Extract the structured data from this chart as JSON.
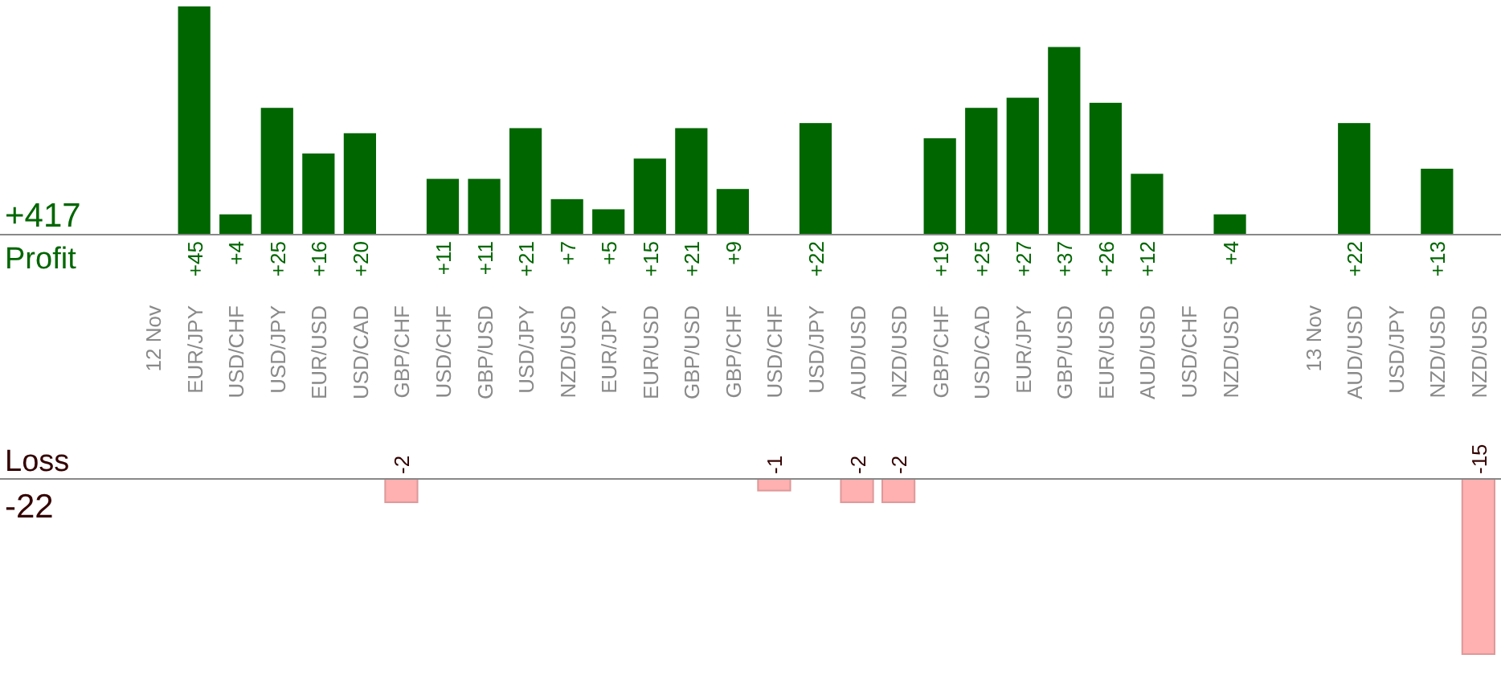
{
  "chart_data": [
    {
      "type": "bar",
      "ylabel": "Profit",
      "annotations": [
        "+417"
      ],
      "categories": [
        "12 Nov",
        "EUR/JPY",
        "USD/CHF",
        "USD/JPY",
        "EUR/USD",
        "USD/CAD",
        "GBP/CHF",
        "USD/CHF",
        "GBP/USD",
        "USD/JPY",
        "NZD/USD",
        "EUR/JPY",
        "EUR/USD",
        "GBP/USD",
        "GBP/CHF",
        "USD/CHF",
        "USD/JPY",
        "AUD/USD",
        "NZD/USD",
        "GBP/CHF",
        "USD/CAD",
        "EUR/JPY",
        "GBP/USD",
        "EUR/USD",
        "AUD/USD",
        "USD/CHF",
        "NZD/USD",
        null,
        "13 Nov",
        "AUD/USD",
        "USD/JPY",
        "NZD/USD",
        "NZD/USD"
      ],
      "values": [
        null,
        45,
        4,
        25,
        16,
        20,
        null,
        11,
        11,
        21,
        7,
        5,
        15,
        21,
        9,
        null,
        22,
        null,
        null,
        19,
        25,
        27,
        37,
        26,
        12,
        null,
        4,
        null,
        null,
        22,
        null,
        13,
        null
      ],
      "value_labels": [
        null,
        "+45",
        "+4",
        "+25",
        "+16",
        "+20",
        null,
        "+11",
        "+11",
        "+21",
        "+7",
        "+5",
        "+15",
        "+21",
        "+9",
        null,
        "+22",
        null,
        null,
        "+19",
        "+25",
        "+27",
        "+37",
        "+26",
        "+12",
        null,
        "+4",
        null,
        null,
        "+22",
        null,
        "+13",
        null
      ],
      "color": "#006600"
    },
    {
      "type": "bar",
      "ylabel": "Loss",
      "annotations": [
        "-22"
      ],
      "categories": [
        null,
        null,
        null,
        null,
        null,
        null,
        null,
        null,
        null,
        null,
        null,
        null,
        null,
        null,
        null,
        null,
        null,
        null,
        null,
        null,
        null,
        null,
        null,
        null,
        null,
        null,
        null,
        null,
        null,
        null,
        null,
        null,
        null
      ],
      "values": [
        null,
        null,
        null,
        null,
        null,
        null,
        -2,
        null,
        null,
        null,
        null,
        null,
        null,
        null,
        null,
        -1,
        null,
        -2,
        -2,
        null,
        null,
        null,
        null,
        null,
        null,
        null,
        null,
        null,
        null,
        null,
        null,
        null,
        -15
      ],
      "data_labels": true,
      "color": "#ffb0b0"
    }
  ]
}
